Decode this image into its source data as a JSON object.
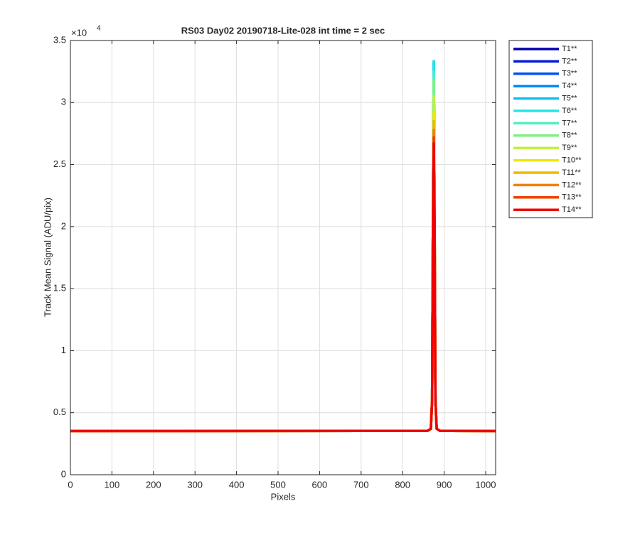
{
  "chart_data": {
    "type": "line",
    "title": "RS03 Day02 20190718-Lite-028 int time = 2 sec",
    "xlabel": "Pixels",
    "ylabel": "Track Mean Signal (ADU/pix)",
    "y_multiplier": {
      "base": "×10",
      "exponent": "4"
    },
    "x": [
      0,
      860,
      868,
      871,
      873,
      875,
      877,
      879,
      882,
      890,
      1024
    ],
    "xlim": [
      0,
      1024
    ],
    "xticks": [
      0,
      100,
      200,
      300,
      400,
      500,
      600,
      700,
      800,
      900,
      1000
    ],
    "ylim": [
      0,
      3.5
    ],
    "yticks": [
      0,
      0.5,
      1,
      1.5,
      2,
      2.5,
      3,
      3.5
    ],
    "grid": true,
    "legend": "northeastoutside",
    "series": [
      {
        "name": "T1**",
        "color": "#0000a8",
        "values": [
          0.352,
          0.354,
          0.37,
          0.6,
          2.0,
          3.3,
          2.0,
          0.6,
          0.37,
          0.354,
          0.352
        ]
      },
      {
        "name": "T2**",
        "color": "#0018d8",
        "values": [
          0.352,
          0.354,
          0.37,
          0.6,
          2.0,
          3.31,
          2.0,
          0.6,
          0.37,
          0.354,
          0.352
        ]
      },
      {
        "name": "T3**",
        "color": "#0050f0",
        "values": [
          0.352,
          0.354,
          0.37,
          0.6,
          2.0,
          3.32,
          2.0,
          0.6,
          0.37,
          0.354,
          0.352
        ]
      },
      {
        "name": "T4**",
        "color": "#0088f0",
        "values": [
          0.352,
          0.354,
          0.37,
          0.6,
          2.0,
          3.325,
          2.0,
          0.6,
          0.37,
          0.354,
          0.352
        ]
      },
      {
        "name": "T5**",
        "color": "#10c0f0",
        "values": [
          0.352,
          0.354,
          0.37,
          0.6,
          2.0,
          3.33,
          2.0,
          0.6,
          0.37,
          0.354,
          0.352
        ]
      },
      {
        "name": "T6**",
        "color": "#20e8e8",
        "values": [
          0.352,
          0.354,
          0.37,
          0.6,
          2.0,
          3.335,
          2.0,
          0.6,
          0.37,
          0.354,
          0.352
        ]
      },
      {
        "name": "T7**",
        "color": "#50f0c0",
        "values": [
          0.352,
          0.354,
          0.37,
          0.6,
          2.0,
          3.25,
          2.0,
          0.6,
          0.37,
          0.354,
          0.352
        ]
      },
      {
        "name": "T8**",
        "color": "#80f080",
        "values": [
          0.352,
          0.354,
          0.37,
          0.6,
          2.0,
          3.18,
          2.0,
          0.6,
          0.37,
          0.354,
          0.352
        ]
      },
      {
        "name": "T9**",
        "color": "#c0f040",
        "values": [
          0.352,
          0.354,
          0.37,
          0.6,
          2.0,
          3.05,
          2.0,
          0.6,
          0.37,
          0.354,
          0.352
        ]
      },
      {
        "name": "T10**",
        "color": "#f0e800",
        "values": [
          0.352,
          0.354,
          0.37,
          0.6,
          2.0,
          2.92,
          2.0,
          0.6,
          0.37,
          0.354,
          0.352
        ]
      },
      {
        "name": "T11**",
        "color": "#f0b800",
        "values": [
          0.352,
          0.354,
          0.37,
          0.6,
          2.0,
          2.85,
          2.0,
          0.6,
          0.37,
          0.354,
          0.352
        ]
      },
      {
        "name": "T12**",
        "color": "#f08000",
        "values": [
          0.352,
          0.354,
          0.37,
          0.6,
          2.0,
          2.78,
          2.0,
          0.6,
          0.37,
          0.354,
          0.352
        ]
      },
      {
        "name": "T13**",
        "color": "#f04000",
        "values": [
          0.352,
          0.354,
          0.37,
          0.6,
          2.0,
          2.72,
          2.0,
          0.6,
          0.37,
          0.354,
          0.352
        ]
      },
      {
        "name": "T14**",
        "color": "#f00000",
        "values": [
          0.352,
          0.354,
          0.37,
          0.6,
          2.0,
          2.67,
          2.0,
          0.6,
          0.37,
          0.354,
          0.352
        ]
      }
    ]
  }
}
